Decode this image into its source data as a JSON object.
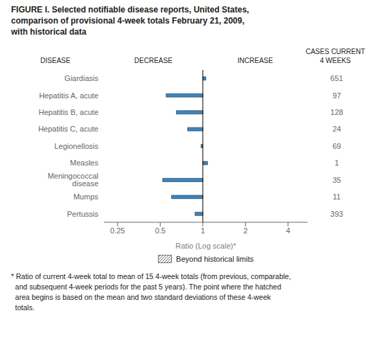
{
  "chart_data": {
    "type": "bar",
    "orientation": "horizontal",
    "log": "x",
    "title": "FIGURE I. Selected notifiable disease reports, United States,\ncomparison of provisional 4-week totals February 21, 2009,\nwith historical data",
    "categories": [
      "Giardiasis",
      "Hepatitis A, acute",
      "Hepatitis B, acute",
      "Hepatitis C, acute",
      "Legionellosis",
      "Measles",
      "Meningococcal disease",
      "Mumps",
      "Pertussis"
    ],
    "values": [
      1.05,
      0.55,
      0.65,
      0.78,
      0.97,
      1.08,
      0.52,
      0.6,
      0.88
    ],
    "baseline": 1,
    "cases": [
      651,
      97,
      128,
      24,
      69,
      1,
      35,
      11,
      393
    ],
    "color": "#3a85c0",
    "xlabel": "Ratio (Log scale)*",
    "xlim": [
      0.2,
      5.5
    ],
    "xticks": [
      0.25,
      0.5,
      1,
      2,
      4
    ],
    "annotations": [
      "DISEASE",
      "DECREASE",
      "INCREASE",
      "CASES CURRENT\n4 WEEKS",
      "Beyond historical limits",
      "* Ratio of current 4-week total to mean of 15 4-week totals (from previous, comparable,\n  and subsequent 4-week periods for the past 5 years). The point where the hatched\n  area begins is based on the mean and two standard deviations of these 4-week\n  totals."
    ]
  }
}
